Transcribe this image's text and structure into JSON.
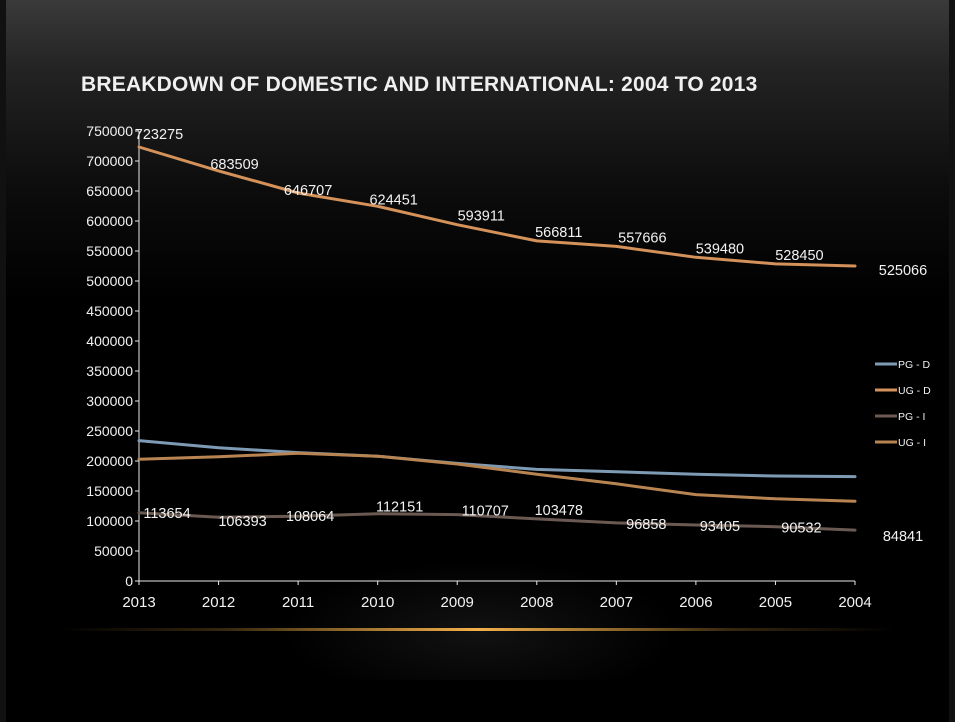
{
  "slide": {
    "title": "BREAKDOWN OF DOMESTIC AND INTERNATIONAL: 2004 TO 2013"
  },
  "colors": {
    "background": "#000000",
    "accent_line": "#f4b04a"
  },
  "chart_data": {
    "type": "line",
    "title": "",
    "xlabel": "",
    "ylabel": "",
    "categories": [
      "2013",
      "2012",
      "2011",
      "2010",
      "2009",
      "2008",
      "2007",
      "2006",
      "2005",
      "2004"
    ],
    "ylim": [
      0,
      750000
    ],
    "yticks": [
      0,
      50000,
      100000,
      150000,
      200000,
      250000,
      300000,
      350000,
      400000,
      450000,
      500000,
      550000,
      600000,
      650000,
      700000,
      750000
    ],
    "grid": false,
    "legend_position": "right",
    "series": [
      {
        "name": "PG - D",
        "color": "#7e9bb5",
        "values": [
          234000,
          222000,
          214000,
          208000,
          196000,
          186000,
          182000,
          178000,
          175000,
          174000
        ],
        "labels": []
      },
      {
        "name": "UG - D",
        "color": "#d4915a",
        "values": [
          723275,
          683509,
          646707,
          624451,
          593911,
          566811,
          557666,
          539480,
          528450,
          525066
        ],
        "labels": [
          "723275",
          "683509",
          "646707",
          "624451",
          "593911",
          "566811",
          "557666",
          "539480",
          "528450",
          "525066"
        ]
      },
      {
        "name": "PG - I",
        "color": "#6b5a52",
        "values": [
          113654,
          106393,
          108064,
          112151,
          110707,
          103478,
          96858,
          93405,
          90532,
          84841
        ],
        "labels": [
          "113654",
          "106393",
          "108064",
          "112151",
          "110707",
          "103478",
          "96858",
          "93405",
          "90532",
          "84841"
        ]
      },
      {
        "name": "UG - I",
        "color": "#b88552",
        "values": [
          203000,
          207000,
          213000,
          208000,
          195000,
          178000,
          162000,
          144000,
          137000,
          133000
        ],
        "labels": []
      }
    ]
  }
}
